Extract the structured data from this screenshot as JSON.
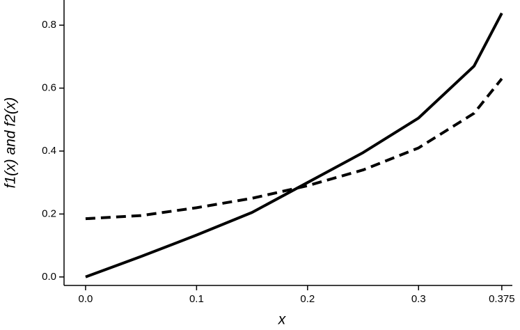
{
  "chart_data": {
    "type": "line",
    "xlabel": "x",
    "ylabel": "f1(x) and f2(x)",
    "x": [
      0,
      0.05,
      0.1,
      0.15,
      0.2,
      0.25,
      0.3,
      0.35,
      0.375
    ],
    "series": [
      {
        "color": "#000000",
        "style": "solid",
        "values": [
          0,
          0.065,
          0.133,
          0.205,
          0.3,
          0.395,
          0.505,
          0.67,
          0.838
        ]
      },
      {
        "color": "#000000",
        "style": "dashed",
        "values": [
          0.185,
          0.195,
          0.22,
          0.25,
          0.29,
          0.34,
          0.41,
          0.52,
          0.63
        ]
      }
    ],
    "xlim": [
      -0.0194,
      0.3845
    ],
    "ylim": [
      -0.027,
      0.88
    ],
    "xticks": [
      {
        "value": 0,
        "label": "0.0"
      },
      0.1,
      0.2,
      0.3,
      0.375
    ],
    "yticks": [
      {
        "value": 0,
        "label": "0.0"
      },
      0.2,
      0.4,
      0.6,
      0.8
    ],
    "grid": false
  }
}
